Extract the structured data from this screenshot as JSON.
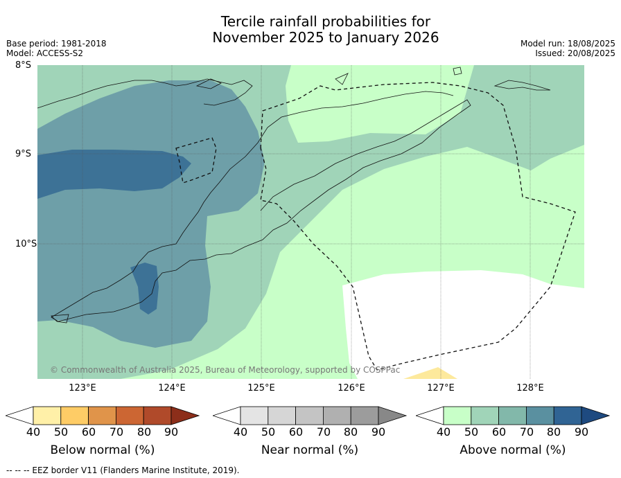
{
  "title_line1": "Tercile rainfall probabilities for",
  "title_line2": "November 2025 to January 2026",
  "base_period": "Base period: 1981-2018",
  "model": "Model: ACCESS-S2",
  "model_run": "Model run: 18/08/2025",
  "issued": "Issued: 20/08/2025",
  "lat_labels": [
    "8°S",
    "9°S",
    "10°S"
  ],
  "lon_labels": [
    "123°E",
    "124°E",
    "125°E",
    "126°E",
    "127°E",
    "128°E"
  ],
  "copyright": "© Commonwealth of Australia 2025, Bureau of Meteorology, supported by COSPPac",
  "colorbars": {
    "below": {
      "title": "Below normal (%)",
      "ticks": [
        "40",
        "50",
        "60",
        "70",
        "80",
        "90"
      ],
      "colors": [
        "#fff0a8",
        "#fecc66",
        "#e0944a",
        "#cc6633",
        "#b04a2a",
        "#8c2e1a"
      ]
    },
    "near": {
      "title": "Near normal (%)",
      "ticks": [
        "40",
        "50",
        "60",
        "70",
        "80",
        "90"
      ],
      "colors": [
        "#e4e4e4",
        "#d6d6d6",
        "#c4c4c4",
        "#b0b0b0",
        "#9c9c9c",
        "#888888"
      ]
    },
    "above": {
      "title": "Above normal (%)",
      "ticks": [
        "40",
        "50",
        "60",
        "70",
        "80",
        "90"
      ],
      "colors": [
        "#c8ffc8",
        "#a0d4b8",
        "#82b8aa",
        "#5a90a0",
        "#306494",
        "#1e4a80"
      ]
    }
  },
  "footer": "--  --  -- EEZ border V11 (Flanders Marine Institute, 2019)."
}
